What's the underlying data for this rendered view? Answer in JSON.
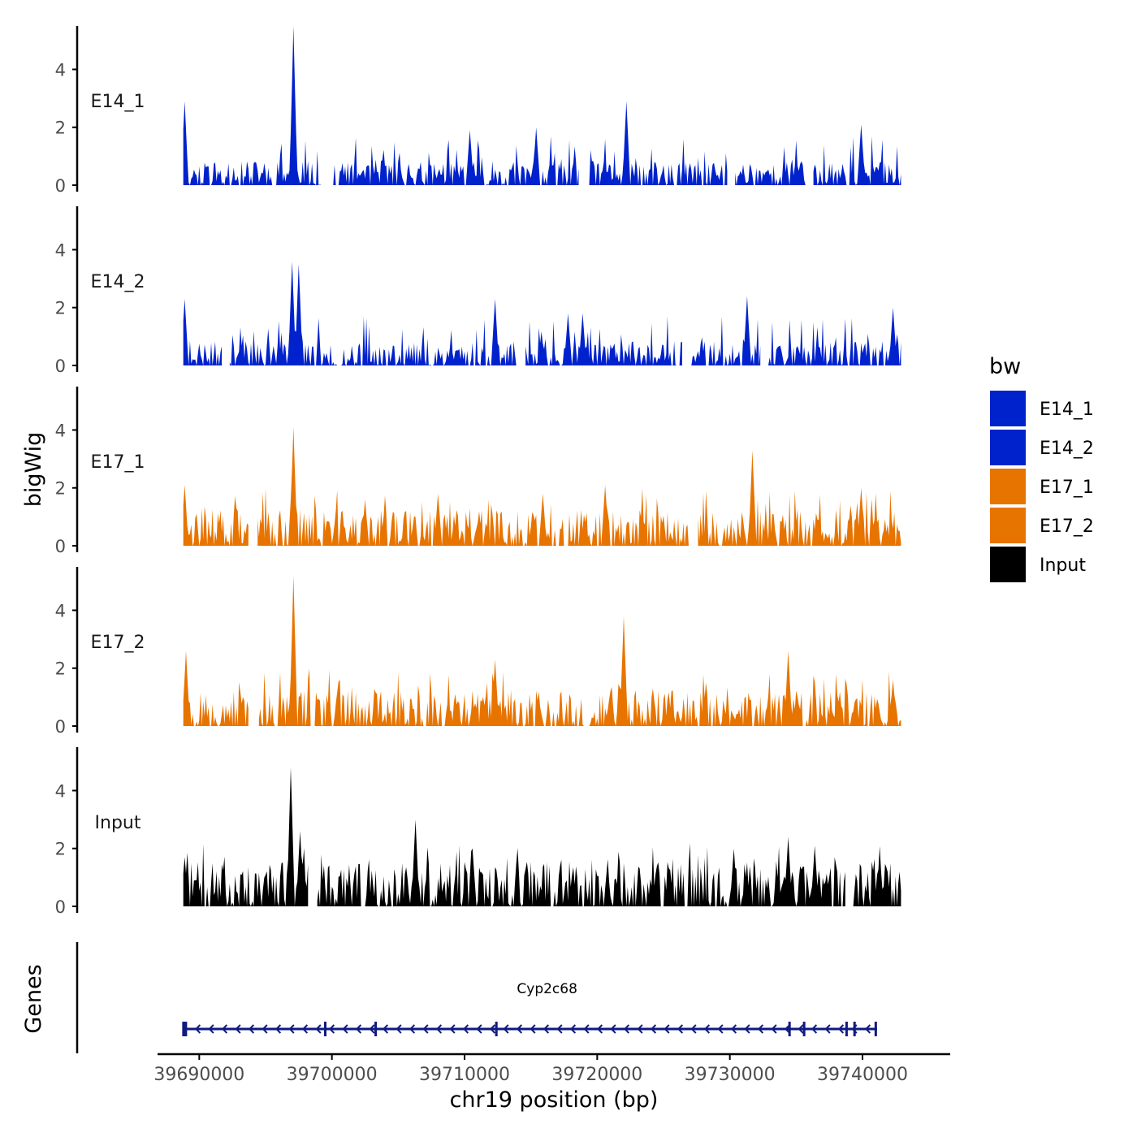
{
  "chart_data": {
    "type": "area",
    "ylabel": "bigWig",
    "xlabel": "chr19 position (bp)",
    "xlim": [
      39686000,
      39746000
    ],
    "ylim": [
      0,
      5.5
    ],
    "yticks": [
      0,
      2,
      4
    ],
    "xticks": [
      39690000,
      39700000,
      39710000,
      39720000,
      39730000,
      39740000
    ],
    "xtick_labels": [
      "39690000",
      "39700000",
      "39710000",
      "39720000",
      "39730000",
      "39740000"
    ],
    "data_range": [
      39688800,
      39742900
    ],
    "legend": {
      "title": "bw",
      "position": "right",
      "entries": [
        {
          "label": "E14_1",
          "color": "#0022CC"
        },
        {
          "label": "E14_2",
          "color": "#0022CC"
        },
        {
          "label": "E17_1",
          "color": "#E87400"
        },
        {
          "label": "E17_2",
          "color": "#E87400"
        },
        {
          "label": "Input",
          "color": "#000000"
        }
      ]
    },
    "tracks": [
      {
        "name": "E14_1",
        "color": "#0022CC",
        "baseline": 0.6,
        "seed": 11,
        "peaks": [
          [
            39688900,
            2.9
          ],
          [
            39697100,
            5.5
          ],
          [
            39710400,
            1.9
          ],
          [
            39715400,
            2.0
          ],
          [
            39722200,
            2.9
          ],
          [
            39735000,
            1.0
          ],
          [
            39739900,
            2.1
          ]
        ],
        "gaps": [
          [
            39699300,
            39700000
          ],
          [
            39718700,
            39719300
          ],
          [
            39729900,
            39730300
          ],
          [
            39735800,
            39736200
          ]
        ]
      },
      {
        "name": "E14_2",
        "color": "#0022CC",
        "baseline": 0.6,
        "seed": 23,
        "peaks": [
          [
            39688900,
            2.3
          ],
          [
            39697000,
            3.6
          ],
          [
            39697500,
            3.5
          ],
          [
            39712300,
            2.3
          ],
          [
            39717800,
            1.8
          ],
          [
            39718900,
            1.8
          ],
          [
            39731300,
            2.4
          ],
          [
            39742300,
            2.0
          ]
        ],
        "gaps": [
          [
            39691800,
            39692200
          ],
          [
            39714000,
            39714500
          ],
          [
            39726500,
            39727000
          ],
          [
            39732400,
            39732800
          ]
        ]
      },
      {
        "name": "E17_1",
        "color": "#E87400",
        "baseline": 0.9,
        "seed": 37,
        "peaks": [
          [
            39688900,
            2.1
          ],
          [
            39697100,
            4.1
          ],
          [
            39702500,
            1.6
          ],
          [
            39708000,
            1.8
          ],
          [
            39715900,
            1.8
          ],
          [
            39720600,
            2.1
          ],
          [
            39731700,
            3.3
          ],
          [
            39739900,
            2.0
          ]
        ],
        "gaps": [
          [
            39693800,
            39694300
          ],
          [
            39727000,
            39727500
          ]
        ]
      },
      {
        "name": "E17_2",
        "color": "#E87400",
        "baseline": 0.9,
        "seed": 53,
        "peaks": [
          [
            39689000,
            2.6
          ],
          [
            39697100,
            5.2
          ],
          [
            39712300,
            2.3
          ],
          [
            39722000,
            3.8
          ],
          [
            39734400,
            2.6
          ],
          [
            39742300,
            1.6
          ]
        ],
        "gaps": [
          [
            39693800,
            39694400
          ]
        ]
      },
      {
        "name": "Input",
        "color": "#000000",
        "baseline": 1.1,
        "seed": 71,
        "peaks": [
          [
            39688900,
            1.7
          ],
          [
            39696900,
            4.8
          ],
          [
            39697600,
            2.6
          ],
          [
            39706300,
            3.0
          ],
          [
            39710600,
            2.0
          ],
          [
            39730300,
            2.0
          ],
          [
            39734400,
            2.4
          ],
          [
            39736400,
            2.1
          ],
          [
            39741300,
            1.8
          ]
        ],
        "gaps": [
          [
            39698300,
            39698800
          ],
          [
            39738800,
            39739200
          ]
        ]
      }
    ],
    "genes_panel": {
      "label": "Genes",
      "gene_name": "Cyp2c68",
      "strand": "-",
      "start": 39688900,
      "end": 39741100,
      "color": "#101A80",
      "exons": [
        39688900,
        39699500,
        39703300,
        39712400,
        39734500,
        39735600,
        39738800,
        39739400,
        39741000
      ]
    }
  }
}
